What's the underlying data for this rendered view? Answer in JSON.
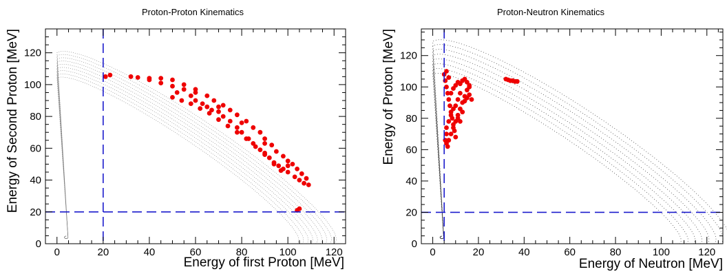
{
  "chart_data": [
    {
      "type": "scatter",
      "title": "Proton-Proton Kinematics",
      "xlabel": "Energy of first Proton [MeV]",
      "ylabel": "Energy of Second Proton [MeV]",
      "xlim": [
        -5,
        125
      ],
      "ylim": [
        0,
        135
      ],
      "xticks": [
        0,
        20,
        40,
        60,
        80,
        100,
        120
      ],
      "yticks": [
        0,
        20,
        40,
        60,
        80,
        100,
        120
      ],
      "cut_lines": {
        "x": 20,
        "y": 20
      },
      "kinematic_loci": [
        {
          "t_max": 104,
          "bulge": 0.93
        },
        {
          "t_max": 106,
          "bulge": 0.94
        },
        {
          "t_max": 108,
          "bulge": 0.95
        },
        {
          "t_max": 110,
          "bulge": 0.955
        },
        {
          "t_max": 112,
          "bulge": 0.96
        },
        {
          "t_max": 114,
          "bulge": 0.965
        },
        {
          "t_max": 116,
          "bulge": 0.97
        },
        {
          "t_max": 118,
          "bulge": 0.975
        },
        {
          "t_max": 120,
          "bulge": 0.98
        }
      ],
      "selected_events": [
        [
          21,
          105
        ],
        [
          23,
          106
        ],
        [
          32,
          105
        ],
        [
          35,
          104.5
        ],
        [
          40,
          103
        ],
        [
          45,
          101
        ],
        [
          50,
          99
        ],
        [
          52,
          95
        ],
        [
          55,
          97
        ],
        [
          58,
          93
        ],
        [
          60,
          90
        ],
        [
          63,
          88
        ],
        [
          65,
          86
        ],
        [
          67,
          84
        ],
        [
          70,
          83
        ],
        [
          72,
          80
        ],
        [
          75,
          77
        ],
        [
          78,
          73
        ],
        [
          80,
          70
        ],
        [
          83,
          66
        ],
        [
          85,
          63
        ],
        [
          88,
          59
        ],
        [
          90,
          57
        ],
        [
          92,
          54
        ],
        [
          94,
          51
        ],
        [
          96,
          49
        ],
        [
          98,
          47
        ],
        [
          100,
          45
        ],
        [
          103,
          42
        ],
        [
          105,
          40
        ],
        [
          107,
          38
        ],
        [
          109,
          37
        ],
        [
          45,
          104
        ],
        [
          50,
          103
        ],
        [
          55,
          100
        ],
        [
          60,
          97
        ],
        [
          65,
          93
        ],
        [
          68,
          90
        ],
        [
          72,
          87
        ],
        [
          75,
          84
        ],
        [
          78,
          81
        ],
        [
          82,
          77
        ],
        [
          85,
          73
        ],
        [
          88,
          70
        ],
        [
          90,
          66
        ],
        [
          93,
          62
        ],
        [
          95,
          58
        ],
        [
          98,
          55
        ],
        [
          100,
          52
        ],
        [
          102,
          50
        ],
        [
          104,
          47
        ],
        [
          106,
          44
        ],
        [
          108,
          41
        ],
        [
          50,
          92
        ],
        [
          54,
          90
        ],
        [
          58,
          88
        ],
        [
          62,
          85
        ],
        [
          66,
          82
        ],
        [
          70,
          78
        ],
        [
          74,
          74
        ],
        [
          78,
          70
        ],
        [
          82,
          66
        ],
        [
          86,
          61
        ],
        [
          90,
          56
        ],
        [
          94,
          50
        ],
        [
          97,
          46
        ],
        [
          40,
          104
        ],
        [
          60,
          95
        ],
        [
          70,
          86
        ],
        [
          80,
          76
        ],
        [
          90,
          63
        ],
        [
          100,
          49
        ],
        [
          105,
          22
        ],
        [
          104,
          21
        ]
      ]
    },
    {
      "type": "scatter",
      "title": "Proton-Neutron Kinematics",
      "xlabel": "Energy of Neutron [MeV]",
      "ylabel": "Energy of Proton [MeV]",
      "xlim": [
        -5,
        127
      ],
      "ylim": [
        0,
        137
      ],
      "xticks": [
        0,
        20,
        40,
        60,
        80,
        100,
        120
      ],
      "yticks": [
        0,
        20,
        40,
        60,
        80,
        100,
        120
      ],
      "cut_lines": {
        "x": 5,
        "y": 20
      },
      "kinematic_loci": [
        {
          "t_max": 108,
          "bulge": 0.9
        },
        {
          "t_max": 111,
          "bulge": 0.92
        },
        {
          "t_max": 114,
          "bulge": 0.94
        },
        {
          "t_max": 117,
          "bulge": 0.96
        },
        {
          "t_max": 120,
          "bulge": 0.98
        },
        {
          "t_max": 123,
          "bulge": 1.0
        },
        {
          "t_max": 126,
          "bulge": 1.02
        },
        {
          "t_max": 129,
          "bulge": 1.04
        }
      ],
      "selected_events": [
        [
          5,
          108
        ],
        [
          5.5,
          104
        ],
        [
          6,
          100
        ],
        [
          6.5,
          96
        ],
        [
          7,
          92
        ],
        [
          7.5,
          88
        ],
        [
          8,
          84
        ],
        [
          8.5,
          80
        ],
        [
          9,
          76
        ],
        [
          9.5,
          72
        ],
        [
          10,
          68
        ],
        [
          6,
          64
        ],
        [
          6.5,
          62
        ],
        [
          7,
          66
        ],
        [
          8,
          70
        ],
        [
          9,
          74
        ],
        [
          10,
          78
        ],
        [
          11,
          82
        ],
        [
          12,
          86
        ],
        [
          13,
          90
        ],
        [
          14,
          94
        ],
        [
          15,
          98
        ],
        [
          16,
          100
        ],
        [
          12,
          102
        ],
        [
          13,
          104
        ],
        [
          14,
          105
        ],
        [
          15,
          103
        ],
        [
          16,
          101
        ],
        [
          14,
          91
        ],
        [
          15,
          93
        ],
        [
          16,
          95
        ],
        [
          17,
          92
        ],
        [
          8,
          96
        ],
        [
          9,
          99
        ],
        [
          10,
          101
        ],
        [
          11,
          103
        ],
        [
          7,
          106
        ],
        [
          6,
          110
        ],
        [
          12,
          96
        ],
        [
          11,
          92
        ],
        [
          10,
          88
        ],
        [
          9,
          86
        ],
        [
          8,
          82
        ],
        [
          7,
          78
        ],
        [
          6,
          74
        ],
        [
          6,
          70
        ],
        [
          5.5,
          66
        ],
        [
          11,
          80
        ],
        [
          12,
          78
        ],
        [
          13,
          84
        ],
        [
          32,
          105
        ],
        [
          33,
          104.5
        ],
        [
          34,
          104
        ],
        [
          35,
          104
        ],
        [
          36,
          103.5
        ],
        [
          37,
          103.5
        ]
      ]
    }
  ]
}
